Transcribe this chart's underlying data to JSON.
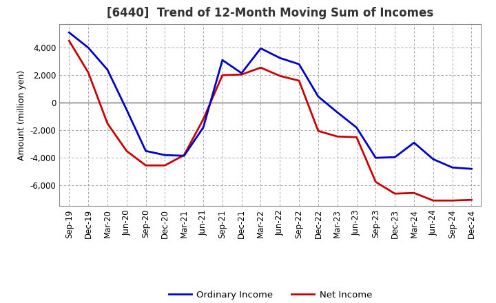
{
  "title": "[6440]  Trend of 12-Month Moving Sum of Incomes",
  "ylabel": "Amount (million yen)",
  "x_labels": [
    "Sep-19",
    "Dec-19",
    "Mar-20",
    "Jun-20",
    "Sep-20",
    "Dec-20",
    "Mar-21",
    "Jun-21",
    "Sep-21",
    "Dec-21",
    "Mar-22",
    "Jun-22",
    "Sep-22",
    "Dec-22",
    "Mar-23",
    "Jun-23",
    "Sep-23",
    "Dec-23",
    "Mar-24",
    "Jun-24",
    "Sep-24",
    "Dec-24"
  ],
  "ordinary_income": [
    5100,
    4000,
    2400,
    -500,
    -3500,
    -3800,
    -3850,
    -1800,
    3100,
    2150,
    3950,
    3250,
    2800,
    450,
    -700,
    -1800,
    -4000,
    -3950,
    -2900,
    -4100,
    -4700,
    -4800
  ],
  "net_income": [
    4500,
    2200,
    -1500,
    -3500,
    -4550,
    -4550,
    -3800,
    -1200,
    2000,
    2050,
    2550,
    1950,
    1600,
    -2050,
    -2450,
    -2500,
    -5750,
    -6600,
    -6550,
    -7100,
    -7100,
    -7050
  ],
  "ordinary_color": "#0000CC",
  "net_color": "#CC0000",
  "ylim": [
    -7500,
    5700
  ],
  "yticks": [
    -6000,
    -4000,
    -2000,
    0,
    2000,
    4000
  ],
  "background_color": "#FFFFFF",
  "grid_color": "#999999",
  "title_fontsize": 12,
  "axis_fontsize": 8.5,
  "ylabel_fontsize": 9,
  "legend_fontsize": 9.5,
  "line_width": 2.0
}
